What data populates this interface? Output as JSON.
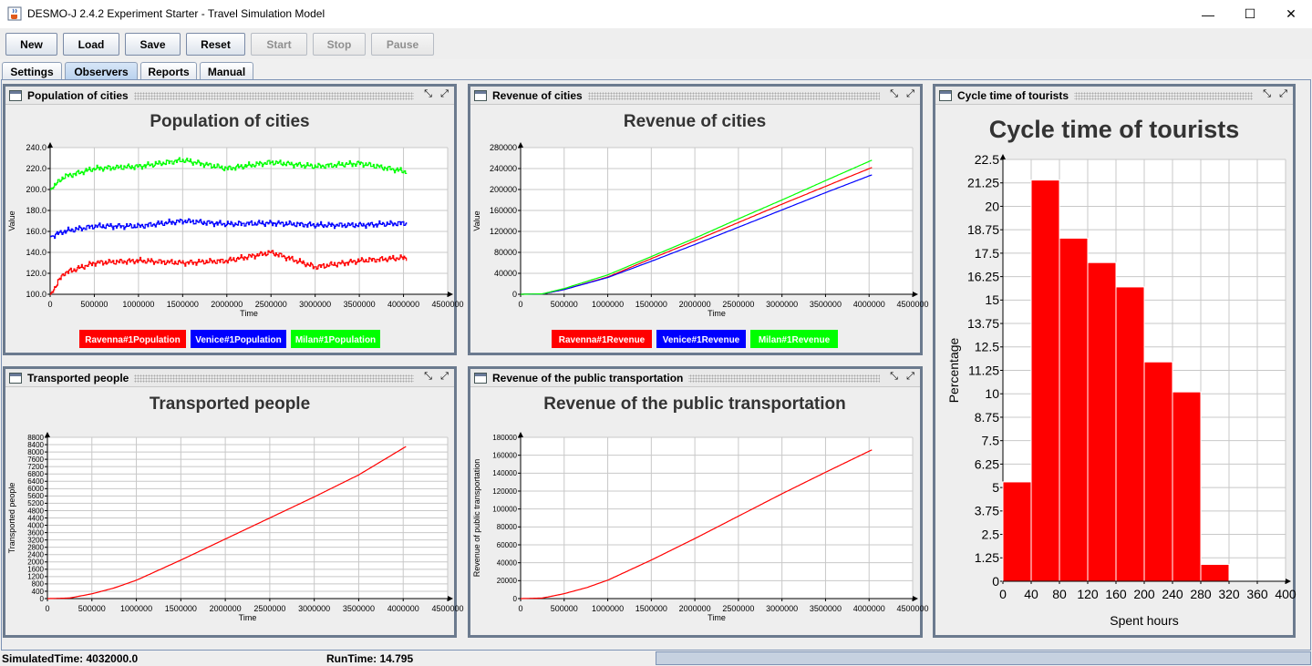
{
  "window": {
    "title": "DESMO-J 2.4.2 Experiment Starter - Travel Simulation Model",
    "icon": "java-cup-icon",
    "minimize_glyph": "—",
    "maximize_glyph": "☐",
    "close_glyph": "✕"
  },
  "toolbar": {
    "new_label": "New",
    "load_label": "Load",
    "save_label": "Save",
    "reset_label": "Reset",
    "start_label": "Start",
    "stop_label": "Stop",
    "pause_label": "Pause"
  },
  "tabs": {
    "settings": "Settings",
    "observers": "Observers",
    "reports": "Reports",
    "manual": "Manual",
    "active": "Observers"
  },
  "frame_buttons": {
    "restore_glyph": "⤡",
    "maximize_glyph": "⤢"
  },
  "colors": {
    "red": "#ff0000",
    "blue": "#0000ff",
    "green": "#00ff00",
    "frame_border": "#6b7a8e"
  },
  "frames": {
    "population": {
      "title": "Population of cities"
    },
    "revenue": {
      "title": "Revenue of cities"
    },
    "cycle": {
      "title": "Cycle time of tourists"
    },
    "transported": {
      "title": "Transported people"
    },
    "transport_revenue": {
      "title": "Revenue of the public transportation"
    }
  },
  "status": {
    "simulated_time": "SimulatedTime: 4032000.0",
    "run_time": "RunTime: 14.795",
    "progress": 0
  },
  "chart_data": [
    {
      "id": "population",
      "type": "line",
      "title": "Population of cities",
      "xlabel": "Time",
      "ylabel": "Value",
      "xlim": [
        0,
        4500000
      ],
      "ylim": [
        100,
        240
      ],
      "xticks": [
        "0",
        "500000",
        "1000000",
        "1500000",
        "2000000",
        "2500000",
        "3000000",
        "3500000",
        "4000000",
        "4500000"
      ],
      "yticks": [
        "100.0",
        "120.0",
        "140.0",
        "160.0",
        "180.0",
        "200.0",
        "220.0",
        "240.0"
      ],
      "grid": true,
      "legend": "bottom",
      "series": [
        {
          "name": "Ravenna#1Population",
          "color": "#ff0000",
          "x": [
            0,
            150000,
            500000,
            1000000,
            1500000,
            2000000,
            2500000,
            3000000,
            3500000,
            4032000
          ],
          "y": [
            100,
            120,
            130,
            132,
            130,
            132,
            140,
            126,
            132,
            135
          ]
        },
        {
          "name": "Venice#1Population",
          "color": "#0000ff",
          "x": [
            0,
            150000,
            500000,
            1000000,
            1500000,
            2000000,
            2500000,
            3000000,
            3500000,
            4032000
          ],
          "y": [
            155,
            160,
            165,
            165,
            170,
            167,
            168,
            166,
            166,
            168
          ]
        },
        {
          "name": "Milan#1Population",
          "color": "#00ff00",
          "x": [
            0,
            150000,
            500000,
            1000000,
            1500000,
            2000000,
            2500000,
            3000000,
            3500000,
            4032000
          ],
          "y": [
            200,
            212,
            220,
            222,
            228,
            220,
            226,
            222,
            225,
            217
          ]
        }
      ]
    },
    {
      "id": "revenue",
      "type": "line",
      "title": "Revenue of cities",
      "xlabel": "Time",
      "ylabel": "Value",
      "xlim": [
        0,
        4500000
      ],
      "ylim": [
        0,
        280000
      ],
      "xticks": [
        "0",
        "500000",
        "1000000",
        "1500000",
        "2000000",
        "2500000",
        "3000000",
        "3500000",
        "4000000",
        "4500000"
      ],
      "yticks": [
        "0",
        "40000",
        "80000",
        "120000",
        "160000",
        "200000",
        "240000",
        "280000"
      ],
      "grid": true,
      "legend": "bottom",
      "series": [
        {
          "name": "Ravenna#1Revenue",
          "color": "#ff0000",
          "x": [
            0,
            250000,
            500000,
            1000000,
            1500000,
            2000000,
            2500000,
            3000000,
            3500000,
            4032000
          ],
          "y": [
            0,
            500,
            9000,
            33000,
            68000,
            102000,
            137000,
            172000,
            206000,
            242000
          ]
        },
        {
          "name": "Venice#1Revenue",
          "color": "#0000ff",
          "x": [
            0,
            250000,
            500000,
            1000000,
            1500000,
            2000000,
            2500000,
            3000000,
            3500000,
            4032000
          ],
          "y": [
            0,
            500,
            9000,
            32000,
            63000,
            95000,
            128000,
            161000,
            194000,
            228000
          ]
        },
        {
          "name": "Milan#1Revenue",
          "color": "#00ff00",
          "x": [
            0,
            250000,
            500000,
            1000000,
            1500000,
            2000000,
            2500000,
            3000000,
            3500000,
            4032000
          ],
          "y": [
            0,
            800,
            11000,
            37000,
            72000,
            107000,
            144000,
            180000,
            217000,
            256000
          ]
        }
      ]
    },
    {
      "id": "cycle",
      "type": "bar",
      "title": "Cycle time of tourists",
      "xlabel": "Spent hours",
      "ylabel": "Percentage",
      "xlim": [
        0,
        400
      ],
      "ylim": [
        0,
        22.5
      ],
      "xticks": [
        "0",
        "40",
        "80",
        "120",
        "160",
        "200",
        "240",
        "280",
        "320",
        "360",
        "400"
      ],
      "yticks": [
        "0",
        "1.25",
        "2.5",
        "3.75",
        "5",
        "6.25",
        "7.5",
        "8.75",
        "10",
        "11.25",
        "12.5",
        "13.75",
        "15",
        "16.25",
        "17.5",
        "18.75",
        "20",
        "21.25",
        "22.5"
      ],
      "grid": true,
      "bins": [
        {
          "from": 0,
          "to": 40,
          "value": 5.3
        },
        {
          "from": 40,
          "to": 80,
          "value": 21.4
        },
        {
          "from": 80,
          "to": 120,
          "value": 18.3
        },
        {
          "from": 120,
          "to": 160,
          "value": 17.0
        },
        {
          "from": 160,
          "to": 200,
          "value": 15.7
        },
        {
          "from": 200,
          "to": 240,
          "value": 11.7
        },
        {
          "from": 240,
          "to": 280,
          "value": 10.1
        },
        {
          "from": 280,
          "to": 320,
          "value": 0.9
        }
      ],
      "bar_color": "#ff0000"
    },
    {
      "id": "transported",
      "type": "line",
      "title": "Transported people",
      "xlabel": "Time",
      "ylabel": "Transported people",
      "xlim": [
        0,
        4500000
      ],
      "ylim": [
        0,
        8800
      ],
      "xticks": [
        "0",
        "500000",
        "1000000",
        "1500000",
        "2000000",
        "2500000",
        "3000000",
        "3500000",
        "4000000",
        "4500000"
      ],
      "yticks": [
        "0",
        "400",
        "800",
        "1200",
        "1600",
        "2000",
        "2400",
        "2800",
        "3200",
        "3600",
        "4000",
        "4400",
        "4800",
        "5200",
        "5600",
        "6000",
        "6400",
        "6800",
        "7200",
        "7600",
        "8000",
        "8400",
        "8800"
      ],
      "grid": true,
      "series": [
        {
          "name": "",
          "color": "#ff0000",
          "x": [
            0,
            250000,
            500000,
            750000,
            1000000,
            1500000,
            2000000,
            2500000,
            3000000,
            3500000,
            4032000
          ],
          "y": [
            0,
            30,
            260,
            580,
            1000,
            2100,
            3250,
            4400,
            5550,
            6750,
            8300
          ]
        }
      ]
    },
    {
      "id": "transport_revenue",
      "type": "line",
      "title": "Revenue of the public transportation",
      "xlabel": "Time",
      "ylabel": "Revenue of public transportation",
      "xlim": [
        0,
        4500000
      ],
      "ylim": [
        0,
        180000
      ],
      "xticks": [
        "0",
        "500000",
        "1000000",
        "1500000",
        "2000000",
        "2500000",
        "3000000",
        "3500000",
        "4000000",
        "4500000"
      ],
      "yticks": [
        "0",
        "20000",
        "40000",
        "60000",
        "80000",
        "100000",
        "120000",
        "140000",
        "160000",
        "180000"
      ],
      "grid": true,
      "series": [
        {
          "name": "",
          "color": "#ff0000",
          "x": [
            0,
            250000,
            500000,
            750000,
            1000000,
            1500000,
            2000000,
            2500000,
            3000000,
            3500000,
            4032000
          ],
          "y": [
            0,
            600,
            5500,
            12000,
            20500,
            43000,
            67000,
            92000,
            117000,
            141000,
            166000
          ]
        }
      ]
    }
  ]
}
